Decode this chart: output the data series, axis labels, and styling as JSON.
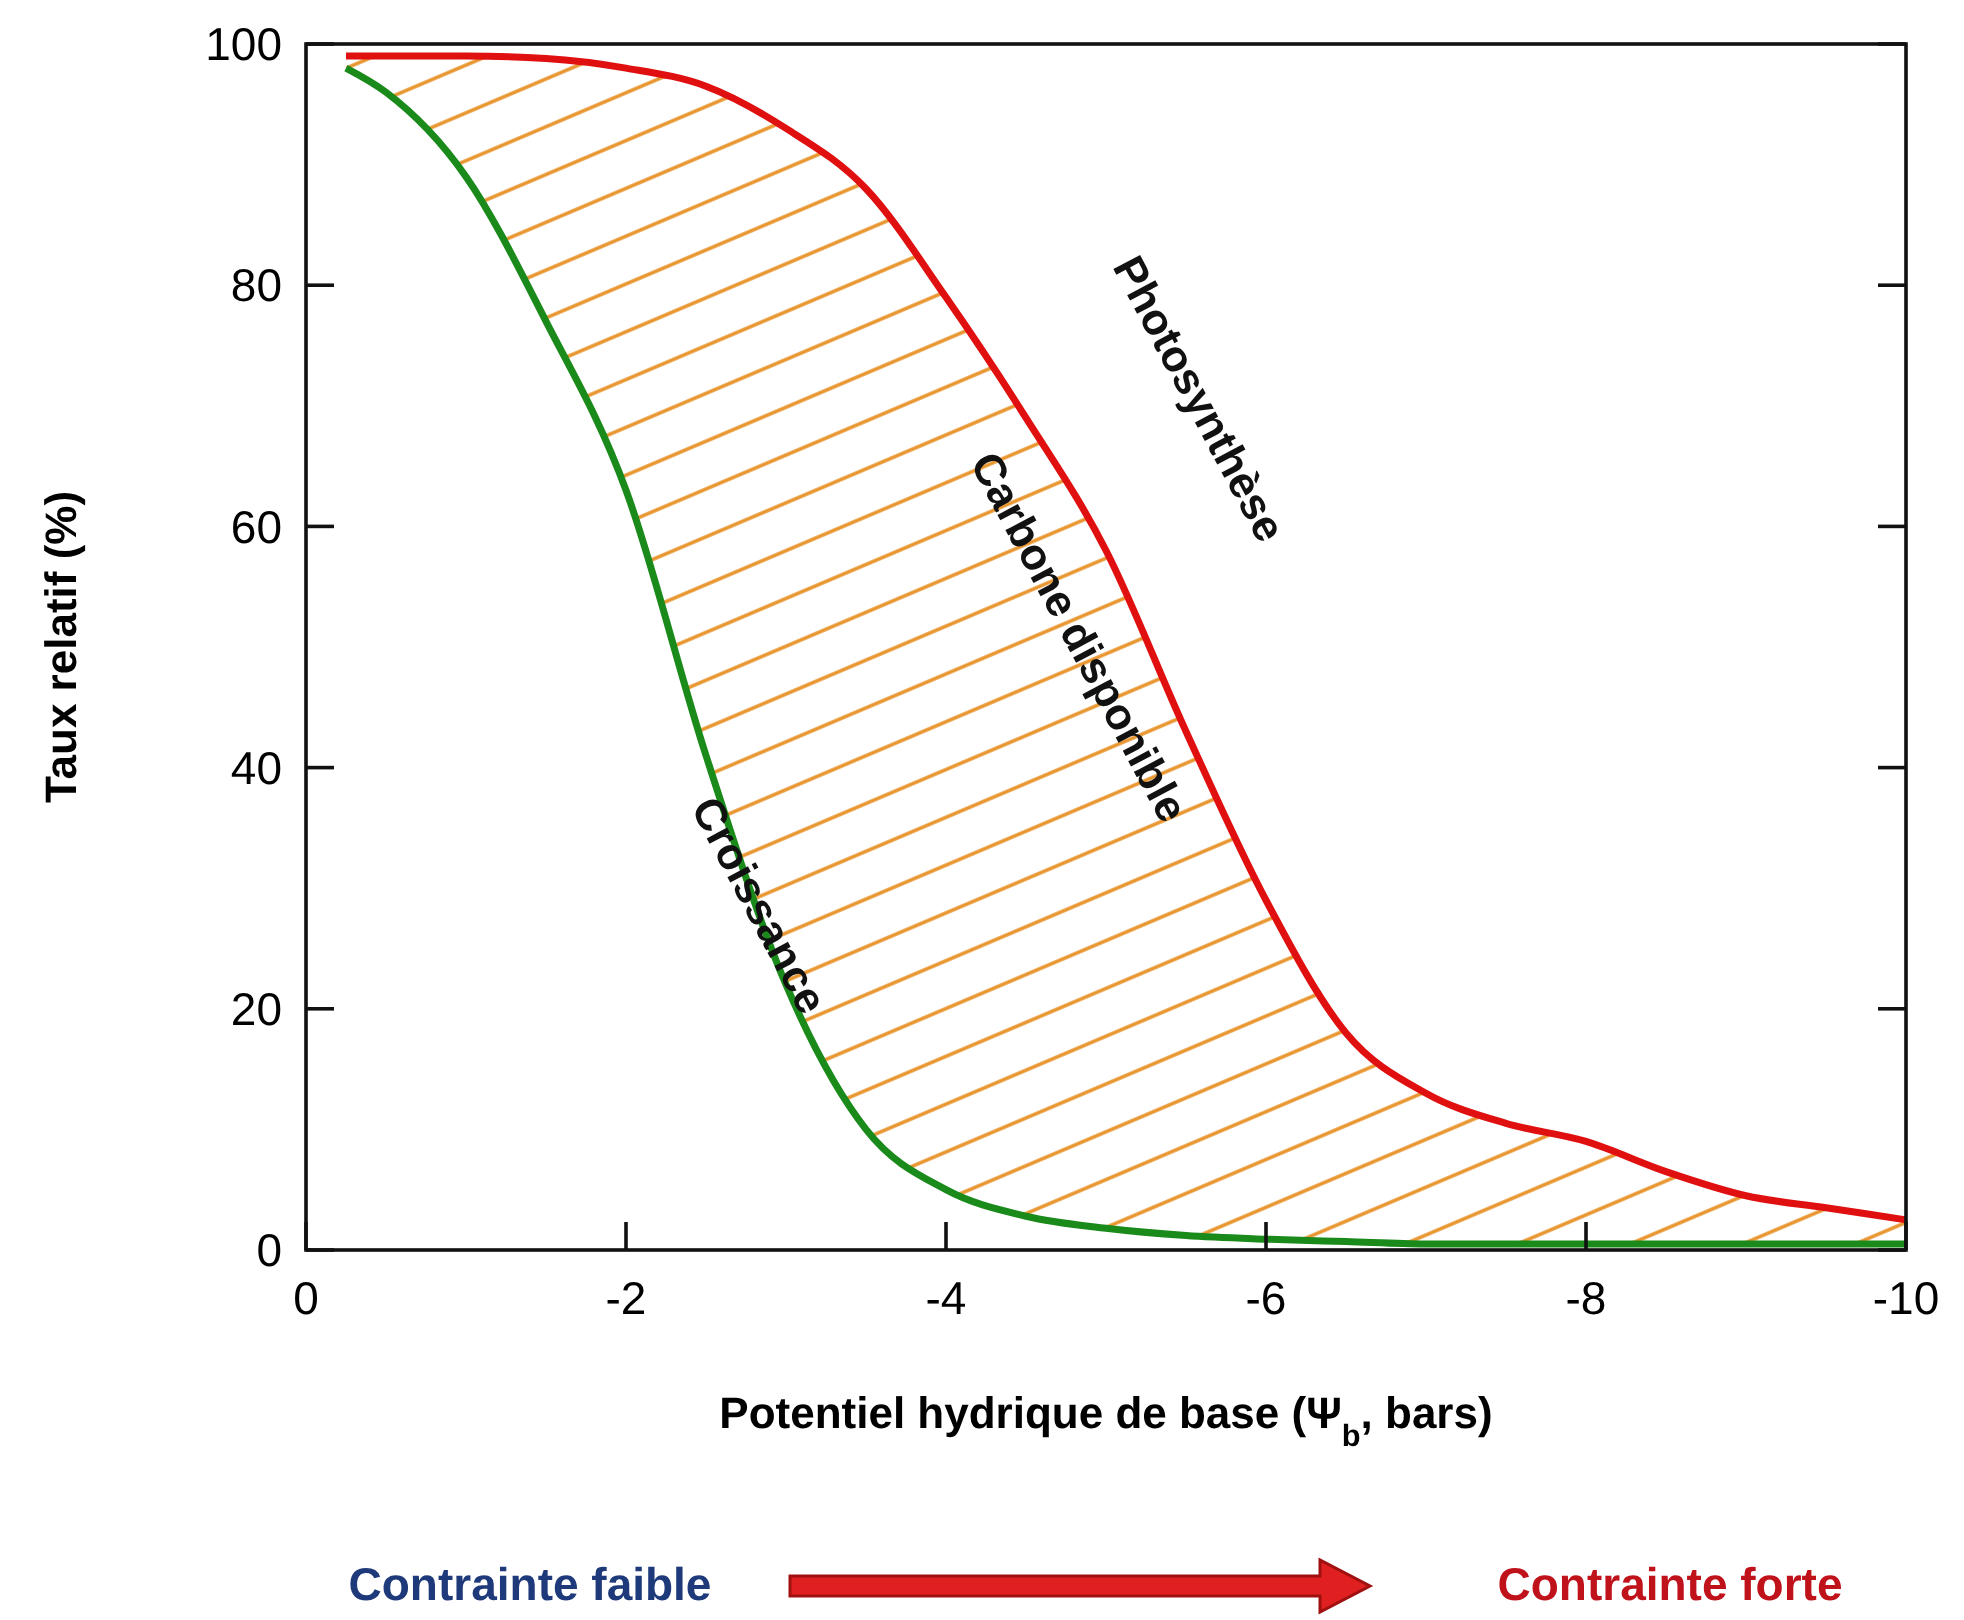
{
  "chart_data": {
    "type": "line",
    "xlabel": "Potentiel hydrique de base (Ψ$_{b}$, bars)",
    "ylabel": "Taux relatif (%)",
    "x": [
      -0.25,
      -0.5,
      -1,
      -1.5,
      -2,
      -2.5,
      -3,
      -3.5,
      -4,
      -4.5,
      -5,
      -5.5,
      -6,
      -6.5,
      -7,
      -7.5,
      -8,
      -8.5,
      -9,
      -9.5,
      -10
    ],
    "series": [
      {
        "name": "Photosynthèse",
        "color": "#e01010",
        "values": [
          99,
          99,
          99,
          98.8,
          98,
          96.5,
          93,
          88,
          79,
          69,
          58,
          43,
          29,
          18,
          13,
          10.5,
          9,
          6.5,
          4.5,
          3.5,
          2.5
        ],
        "lower": [
          98,
          96,
          89,
          77,
          63,
          41,
          22,
          10,
          5,
          2.8,
          1.8,
          1.2,
          0.9,
          0.7,
          0.5,
          0.5,
          0.5,
          0.5,
          0.5,
          0.5,
          0.5
        ],
        "upper": [
          99,
          99,
          99,
          98.8,
          98,
          96.5,
          93,
          88,
          79,
          69,
          58,
          43,
          29,
          18,
          13,
          10.5,
          9,
          6.5,
          4.5,
          3.5,
          2.5
        ]
      },
      {
        "name": "Croissance",
        "color": "#1a8a1a",
        "values": [
          98,
          96,
          89,
          77,
          63,
          41,
          22,
          10,
          5,
          2.8,
          1.8,
          1.2,
          0.9,
          0.7,
          0.5,
          0.5,
          0.5,
          0.5,
          0.5,
          0.5,
          0.5
        ]
      }
    ],
    "xlim": [
      0,
      -10
    ],
    "xticks": [
      0,
      -2,
      -4,
      -6,
      -8,
      -10
    ],
    "ylim": [
      0,
      100
    ],
    "yticks": [
      0,
      20,
      40,
      60,
      80,
      100
    ],
    "grid": false,
    "marker": "none",
    "line_style": "solid",
    "annotations": [
      "Carbone disponible",
      "Contrainte faible",
      "Contrainte forte"
    ]
  }
}
